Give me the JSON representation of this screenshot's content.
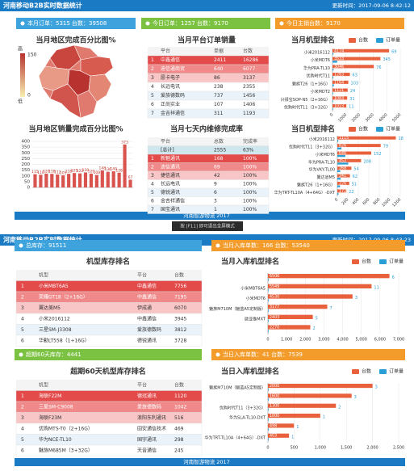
{
  "screens": [
    {
      "title": "河南移动B2B实时数据统计",
      "updated": "更新时间：2017-09-06 8:42:12",
      "footer": "河南智游物流 2017",
      "panels": [
        "本月订单：5315 台数：39508",
        "今日订单：1257 台数：9170",
        "今日主销台数：9170"
      ]
    },
    {
      "title": "河南移动B2B实时数据统计",
      "updated": "更新时间：2017-09-06 8:43:23",
      "footer": "河南智游物流 2017",
      "panels": [
        "总库存：91511",
        "当月入库单数：166 台数：53540",
        "超期60天库存：4441",
        "当日入库单数：41 台数：7539"
      ]
    }
  ],
  "overlay": "按 [F11] 即可退出全屏模式",
  "map": {
    "title": "当月地区完成百分比图%",
    "legend": [
      "高",
      "150",
      "0",
      "低"
    ]
  },
  "tables": [
    {
      "title": "当月平台订单销量",
      "header": [
        "平台",
        "单据",
        "台数"
      ],
      "rows": [
        [
          "1",
          "中鑫通信",
          "2411",
          "16286"
        ],
        [
          "2",
          "迪信通商贸",
          "640",
          "6077"
        ],
        [
          "3",
          "愿卡电子",
          "86",
          "3137"
        ],
        [
          "4",
          "长远电讯",
          "238",
          "2355"
        ],
        [
          "5",
          "爱族德数码",
          "737",
          "1456"
        ],
        [
          "6",
          "正尚实业",
          "107",
          "1406"
        ],
        [
          "7",
          "金吉祥通信",
          "311",
          "1193"
        ]
      ]
    },
    {
      "title": "当月七天内维修完成率",
      "header": [
        "平台",
        "总数",
        "完成率"
      ],
      "rows": [
        [
          "[总计]",
          "2555",
          "63%"
        ],
        [
          "1",
          "新魅通讯",
          "168",
          "100%"
        ],
        [
          "2",
          "迪信通讯",
          "69",
          "100%"
        ],
        [
          "3",
          "捷信通讯",
          "42",
          "100%"
        ],
        [
          "4",
          "长远电讯",
          "9",
          "100%"
        ],
        [
          "5",
          "德锐通讯",
          "6",
          "100%"
        ],
        [
          "6",
          "金吉祥通信",
          "3",
          "100%"
        ],
        [
          "7",
          "国宝通讯",
          "1",
          "100%"
        ]
      ]
    },
    {
      "title": "机型库存排名",
      "header": [
        "机型",
        "平台",
        "台数"
      ],
      "rows": [
        [
          "1",
          "小米MBT6A5",
          "中鑫通信",
          "7756"
        ],
        [
          "2",
          "荣耀GT18（2+16G）",
          "中鑫通信",
          "7195"
        ],
        [
          "3",
          "翼达美M5",
          "伊成通",
          "6070"
        ],
        [
          "4",
          "小米2016112",
          "中鑫通信",
          "3945"
        ],
        [
          "5",
          "三星SM-J3308",
          "爱族德数码",
          "3812"
        ],
        [
          "6",
          "华勤LT558（1+16G）",
          "德锐通讯",
          "3728"
        ]
      ]
    },
    {
      "title": "超期60天机型库存排名",
      "header": [
        "机型",
        "平台",
        "台数"
      ],
      "rows": [
        [
          "1",
          "海联F22M",
          "德冠通讯",
          "1120"
        ],
        [
          "2",
          "三星SM-C9008",
          "爱族德数码",
          "1042"
        ],
        [
          "3",
          "海联F23M",
          "浪阳东利通讯",
          "516"
        ],
        [
          "4",
          "优购MTS-T0（2+16G）",
          "固安通信技术",
          "469"
        ],
        [
          "5",
          "华为NCE-TL10",
          "国宇通讯",
          "298"
        ],
        [
          "6",
          "魅族M685M（3+32G）",
          "天音通信",
          "245"
        ]
      ]
    }
  ],
  "chart_data": [
    {
      "type": "bar",
      "title": "当月地区销量完成百分比图%",
      "categories": [
        null,
        null,
        null,
        null,
        null,
        null,
        null,
        null,
        null,
        null,
        null,
        null,
        null,
        null,
        null,
        null,
        null,
        null
      ],
      "values": [
        115,
        110,
        120,
        118,
        112,
        105,
        118,
        125,
        122,
        130,
        120,
        108,
        148,
        136,
        140,
        128,
        373,
        67
      ],
      "color": "#d9534f",
      "ylim": [
        0,
        400
      ],
      "yticks": [
        0,
        50,
        100,
        150,
        200,
        250,
        300,
        350,
        400
      ]
    },
    {
      "type": "hbar",
      "title": "当月机型排名",
      "categories": [
        "小米2016112",
        "小米MDT6",
        "华为PRA-TL10",
        "优购时代T11",
        "魅族T26（1+16G）",
        "小米MDT2",
        "兴禄宝SOP-N5（2+16G）",
        "优购时代T11（3+32G）"
      ],
      "series": [
        {
          "name": "台数",
          "color": "#e8603c",
          "values": [
            4174,
            3533,
            3046,
            1283,
            1164,
            1121,
            1083,
            1023
          ]
        },
        {
          "name": "订单量",
          "color": "#2a9fd6",
          "values": [
            69,
            345,
            76,
            63,
            103,
            24,
            31,
            11
          ]
        }
      ],
      "xlim": [
        0,
        5000
      ],
      "xticks": [
        0,
        1000,
        2000,
        3000,
        4000,
        5000
      ]
    },
    {
      "type": "hbar",
      "title": "当日机型排名",
      "categories": [
        "小米2016112",
        "优购时代T11（3+32G）",
        "小米MDT6",
        "华为PRA-TL10",
        "华为VKY-TL00",
        "翼达道M5",
        "魅族T26（1+16G）",
        "华为TRT-TL10A（4+64G）-DXT"
      ],
      "series": [
        {
          "name": "台数",
          "color": "#e8603c",
          "values": [
            1115,
            826,
            646,
            452,
            268,
            241,
            226,
            172
          ]
        },
        {
          "name": "订单量",
          "color": "#2a9fd6",
          "values": [
            18,
            79,
            152,
            208,
            54,
            62,
            51,
            22
          ]
        }
      ],
      "xlim": [
        0,
        1200
      ],
      "xticks": [
        0,
        200,
        400,
        600,
        800,
        1000,
        1200
      ]
    },
    {
      "type": "hbar",
      "title": "当月入库机型排名",
      "categories": [
        null,
        "小米MBT6A5",
        "小米MDT6",
        "魅族M710M（魅蓝A5定制版）",
        "欧亚像MXT",
        null
      ],
      "series": [
        {
          "name": "台数",
          "color": "#e8603c",
          "values": [
            6506,
            5549,
            4530,
            3177,
            2403,
            2270
          ]
        },
        {
          "name": "订单量",
          "color": "#2a9fd6",
          "values": [
            6,
            11,
            3,
            7,
            5,
            2
          ]
        }
      ],
      "xlim": [
        0,
        7000
      ],
      "xticks": [
        0,
        {
          "value": 1000,
          "label": "1,000"
        },
        {
          "value": 2000,
          "label": "2,000"
        },
        {
          "value": 3000,
          "label": "3,000"
        },
        {
          "value": 4000,
          "label": "4,000"
        },
        {
          "value": 5000,
          "label": "5,000"
        },
        {
          "value": 6000,
          "label": "6,000"
        },
        {
          "value": 7000,
          "label": "7,000"
        }
      ]
    },
    {
      "type": "hbar",
      "title": "当日入库机型排名",
      "categories": [
        "魅族M710M（魅蓝A5定制版）",
        null,
        "优购时代T11（3+32G）",
        "华为SLA-TL10-DXT",
        null,
        "华为TRT-TL10A（4+64G）-DXT"
      ],
      "series": [
        {
          "name": "台数",
          "color": "#e8603c",
          "values": [
            2000,
            1600,
            1300,
            1000,
            498,
            403
          ]
        },
        {
          "name": "订单量",
          "color": "#2a9fd6",
          "values": [
            3,
            3,
            2,
            1,
            1,
            1
          ]
        }
      ],
      "xlim": [
        0,
        2500
      ],
      "xticks": [
        0,
        500,
        {
          "value": 1000,
          "label": "1,000"
        },
        {
          "value": 1500,
          "label": "1,500"
        },
        {
          "value": 2000,
          "label": "2,000"
        },
        {
          "value": 2500,
          "label": "2,500"
        }
      ]
    }
  ]
}
